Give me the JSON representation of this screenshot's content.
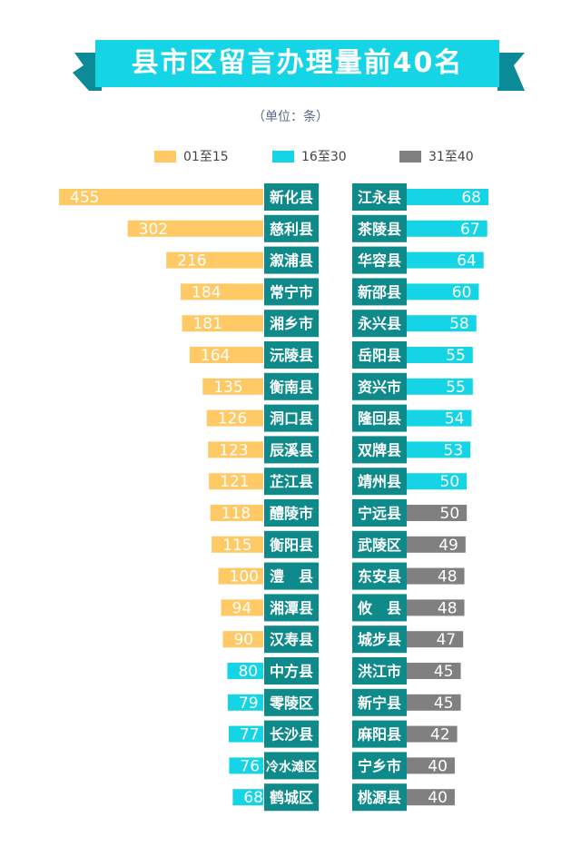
{
  "title": "县市区留言办理量前40名",
  "unit_note": "（单位：条）",
  "colors": {
    "banner": "#14d4e6",
    "banner_dark": "#0b8a98",
    "label_bg": "#0e8a8a",
    "group_1_15": "#ffc966",
    "group_16_30": "#14d4e6",
    "group_31_40": "#808080"
  },
  "legend": [
    {
      "label": "01至15",
      "color": "#ffc966"
    },
    {
      "label": "16至30",
      "color": "#14d4e6"
    },
    {
      "label": "31至40",
      "color": "#808080"
    }
  ],
  "chart_data": {
    "type": "bar",
    "title": "县市区留言办理量前40名",
    "unit": "条",
    "left": [
      {
        "name": "新化县",
        "value": 455,
        "group": "01至15"
      },
      {
        "name": "慈利县",
        "value": 302,
        "group": "01至15"
      },
      {
        "name": "溆浦县",
        "value": 216,
        "group": "01至15"
      },
      {
        "name": "常宁市",
        "value": 184,
        "group": "01至15"
      },
      {
        "name": "湘乡市",
        "value": 181,
        "group": "01至15"
      },
      {
        "name": "沅陵县",
        "value": 164,
        "group": "01至15"
      },
      {
        "name": "衡南县",
        "value": 135,
        "group": "01至15"
      },
      {
        "name": "洞口县",
        "value": 126,
        "group": "01至15"
      },
      {
        "name": "辰溪县",
        "value": 123,
        "group": "01至15"
      },
      {
        "name": "芷江县",
        "value": 121,
        "group": "01至15"
      },
      {
        "name": "醴陵市",
        "value": 118,
        "group": "01至15"
      },
      {
        "name": "衡阳县",
        "value": 115,
        "group": "01至15"
      },
      {
        "name": "澧　县",
        "value": 100,
        "group": "01至15"
      },
      {
        "name": "湘潭县",
        "value": 94,
        "group": "01至15"
      },
      {
        "name": "汉寿县",
        "value": 90,
        "group": "01至15"
      },
      {
        "name": "中方县",
        "value": 80,
        "group": "16至30"
      },
      {
        "name": "零陵区",
        "value": 79,
        "group": "16至30"
      },
      {
        "name": "长沙县",
        "value": 77,
        "group": "16至30"
      },
      {
        "name": "冷水滩区",
        "value": 76,
        "group": "16至30"
      },
      {
        "name": "鹤城区",
        "value": 68,
        "group": "16至30"
      }
    ],
    "right": [
      {
        "name": "江永县",
        "value": 68,
        "group": "16至30"
      },
      {
        "name": "茶陵县",
        "value": 67,
        "group": "16至30"
      },
      {
        "name": "华容县",
        "value": 64,
        "group": "16至30"
      },
      {
        "name": "新邵县",
        "value": 60,
        "group": "16至30"
      },
      {
        "name": "永兴县",
        "value": 58,
        "group": "16至30"
      },
      {
        "name": "岳阳县",
        "value": 55,
        "group": "16至30"
      },
      {
        "name": "资兴市",
        "value": 55,
        "group": "16至30"
      },
      {
        "name": "隆回县",
        "value": 54,
        "group": "16至30"
      },
      {
        "name": "双牌县",
        "value": 53,
        "group": "16至30"
      },
      {
        "name": "靖州县",
        "value": 50,
        "group": "16至30"
      },
      {
        "name": "宁远县",
        "value": 50,
        "group": "31至40"
      },
      {
        "name": "武陵区",
        "value": 49,
        "group": "31至40"
      },
      {
        "name": "东安县",
        "value": 48,
        "group": "31至40"
      },
      {
        "name": "攸　县",
        "value": 48,
        "group": "31至40"
      },
      {
        "name": "城步县",
        "value": 47,
        "group": "31至40"
      },
      {
        "name": "洪江市",
        "value": 45,
        "group": "31至40"
      },
      {
        "name": "新宁县",
        "value": 45,
        "group": "31至40"
      },
      {
        "name": "麻阳县",
        "value": 42,
        "group": "31至40"
      },
      {
        "name": "宁乡市",
        "value": 40,
        "group": "31至40"
      },
      {
        "name": "桃源县",
        "value": 40,
        "group": "31至40"
      }
    ]
  }
}
